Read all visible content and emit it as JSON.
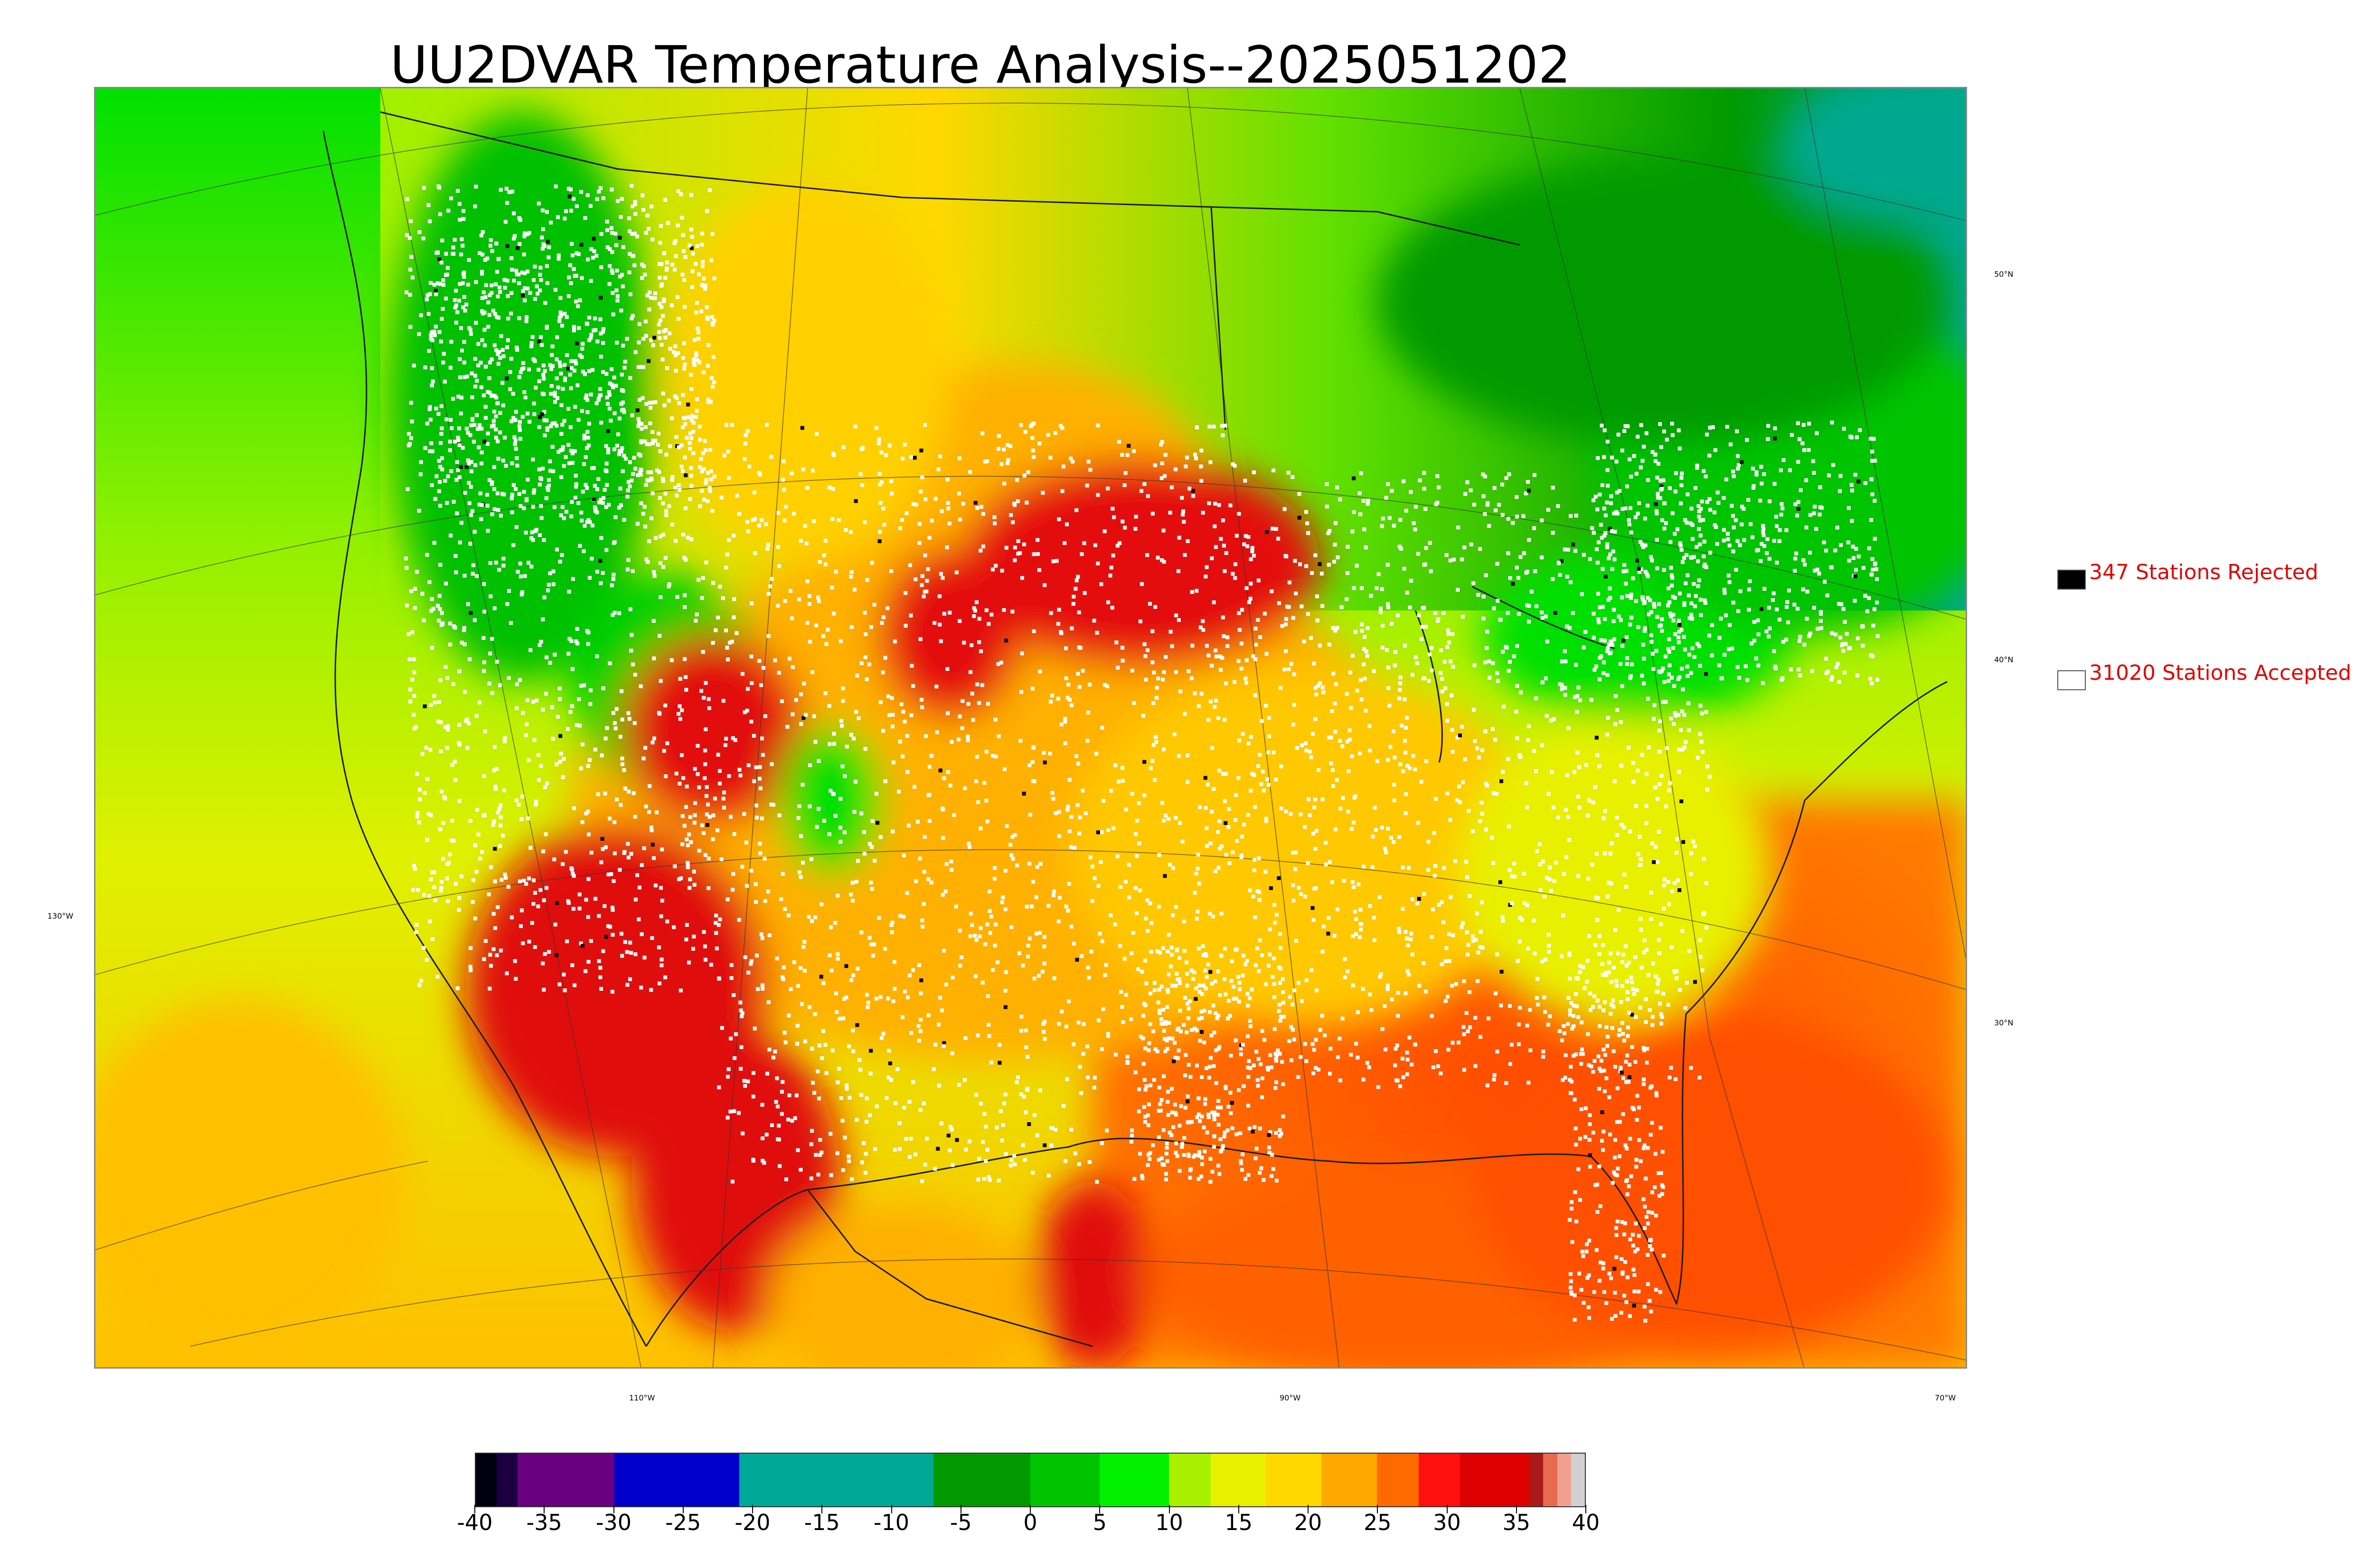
{
  "title": "UU2DVAR Temperature Analysis--2025051202",
  "map": {
    "region": "CONUS",
    "parallels": [
      {
        "label": "50°N"
      },
      {
        "label": "40°N"
      },
      {
        "label": "30°N"
      }
    ],
    "meridians": [
      {
        "label": "130°W"
      },
      {
        "label": "110°W"
      },
      {
        "label": "90°W"
      },
      {
        "label": "70°W"
      }
    ],
    "colors": {
      "ocean_warm": "#ff6a00",
      "ocean_cool": "#c8f000",
      "hot": "#e01010",
      "warm": "#ffa500",
      "mild": "#ffd000",
      "cool": "#00e000",
      "cold": "#009a00",
      "teal": "#00a890"
    }
  },
  "legend": {
    "rejected": {
      "label": "347 Stations Rejected",
      "swatch": "#000000"
    },
    "accepted": {
      "label": "31020 Stations Accepted",
      "swatch": "#ffffff"
    }
  },
  "colorbar": {
    "ticks": [
      "-40",
      "-35",
      "-30",
      "-25",
      "-20",
      "-15",
      "-10",
      "-5",
      "0",
      "5",
      "10",
      "15",
      "20",
      "25",
      "30",
      "35",
      "40"
    ],
    "segments": [
      {
        "from": -40,
        "to": -38.5,
        "color": "#000010"
      },
      {
        "from": -38.5,
        "to": -37,
        "color": "#1a0040"
      },
      {
        "from": -37,
        "to": -30,
        "color": "#6a007f"
      },
      {
        "from": -30,
        "to": -21,
        "color": "#0000cc"
      },
      {
        "from": -21,
        "to": -7,
        "color": "#00a898"
      },
      {
        "from": -7,
        "to": -4,
        "color": "#009900"
      },
      {
        "from": -4,
        "to": 0,
        "color": "#009a00"
      },
      {
        "from": 0,
        "to": 5,
        "color": "#00c400"
      },
      {
        "from": 5,
        "to": 10,
        "color": "#00f000"
      },
      {
        "from": 10,
        "to": 13,
        "color": "#a8f000"
      },
      {
        "from": 13,
        "to": 17,
        "color": "#e8f000"
      },
      {
        "from": 17,
        "to": 21,
        "color": "#ffd800"
      },
      {
        "from": 21,
        "to": 25,
        "color": "#ffa800"
      },
      {
        "from": 25,
        "to": 28,
        "color": "#ff6a00"
      },
      {
        "from": 28,
        "to": 31,
        "color": "#ff1010"
      },
      {
        "from": 31,
        "to": 36,
        "color": "#dd0000"
      },
      {
        "from": 36,
        "to": 37,
        "color": "#aa1a1a"
      },
      {
        "from": 37,
        "to": 38,
        "color": "#e86a50"
      },
      {
        "from": 38,
        "to": 39,
        "color": "#f0a090"
      },
      {
        "from": 39,
        "to": 40,
        "color": "#d0d0d0"
      }
    ]
  }
}
